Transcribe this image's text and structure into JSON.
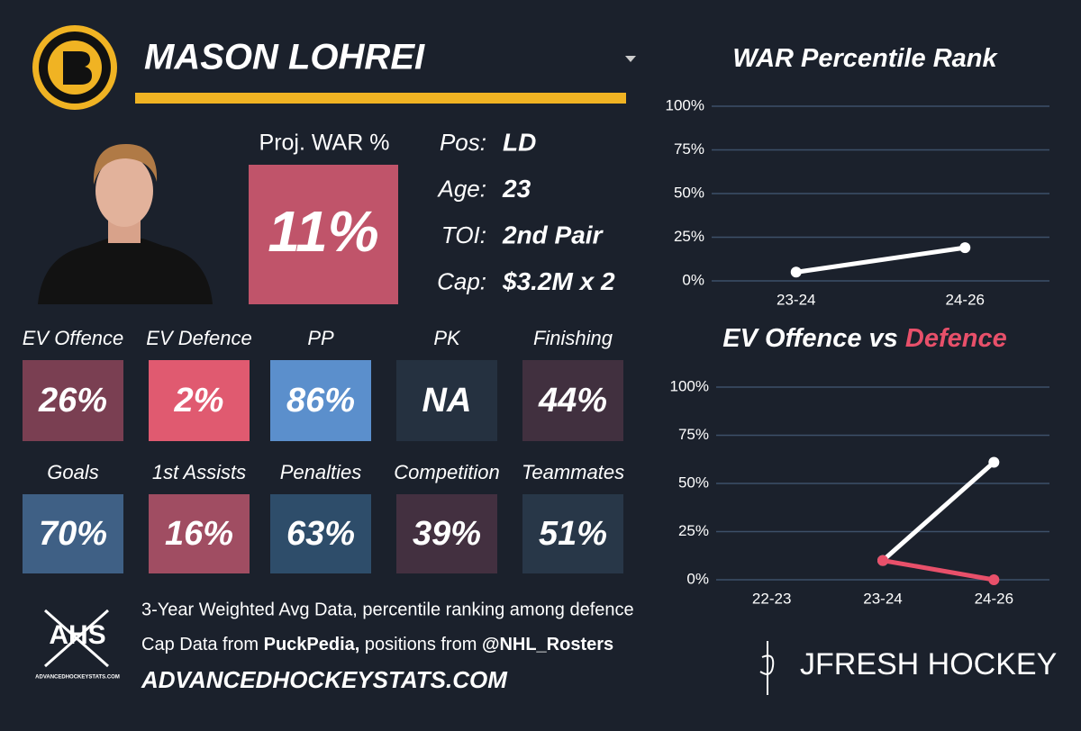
{
  "player": {
    "name": "MASON LOHREI",
    "proj_war_label": "Proj. WAR %",
    "proj_war": "11%",
    "proj_war_color": "#c0546a",
    "info": [
      {
        "label": "Pos:",
        "value": "LD"
      },
      {
        "label": "Age:",
        "value": "23"
      },
      {
        "label": "TOI:",
        "value": "2nd Pair"
      },
      {
        "label": "Cap:",
        "value": "$3.2M x 2"
      }
    ]
  },
  "tiles": [
    [
      {
        "label": "EV Offence",
        "value": "26%",
        "color": "#7a3f52"
      },
      {
        "label": "EV Defence",
        "value": "2%",
        "color": "#e05a70"
      },
      {
        "label": "PP",
        "value": "86%",
        "color": "#5b8fcc"
      },
      {
        "label": "PK",
        "value": "NA",
        "color": "#253140"
      },
      {
        "label": "Finishing",
        "value": "44%",
        "color": "#41303f"
      }
    ],
    [
      {
        "label": "Goals",
        "value": "70%",
        "color": "#3f6085"
      },
      {
        "label": "1st Assists",
        "value": "16%",
        "color": "#a04d62"
      },
      {
        "label": "Penalties",
        "value": "63%",
        "color": "#2e4d6a"
      },
      {
        "label": "Competition",
        "value": "39%",
        "color": "#433040"
      },
      {
        "label": "Teammates",
        "value": "51%",
        "color": "#283748"
      }
    ]
  ],
  "footer": {
    "logo": "AHS",
    "logo_sub": "ADVANCEDHOCKEYSTATS.COM",
    "line1": "3-Year Weighted Avg Data, percentile ranking among defence",
    "line2": [
      {
        "text": "Cap Data from ",
        "bold": false
      },
      {
        "text": "PuckPedia,",
        "bold": true
      },
      {
        "text": " positions from ",
        "bold": false
      },
      {
        "text": "@NHL_Rosters",
        "bold": true
      }
    ],
    "site": "ADVANCEDHOCKEYSTATS.COM",
    "brand": "JFRESH HOCKEY"
  },
  "chart_data": [
    {
      "type": "line",
      "title": "WAR Percentile Rank",
      "categories": [
        "23-24",
        "24-26"
      ],
      "series": [
        {
          "color": "#ffffff",
          "values": [
            5,
            19
          ]
        }
      ],
      "ylim": [
        0,
        100
      ],
      "yticks": [
        {
          "value": 0,
          "label": "0%"
        },
        {
          "value": 25,
          "label": "25%"
        },
        {
          "value": 50,
          "label": "50%"
        },
        {
          "value": 75,
          "label": "75%"
        },
        {
          "value": 100,
          "label": "100%"
        }
      ],
      "grid": true
    },
    {
      "type": "line",
      "title": "EV Offence vs",
      "title_highlight": "Defence",
      "title_highlight_color": "#e8506a",
      "categories": [
        "22-23",
        "23-24",
        "24-26"
      ],
      "series": [
        {
          "color": "#ffffff",
          "values": [
            null,
            10,
            61
          ]
        },
        {
          "color": "#e8506a",
          "values": [
            null,
            10,
            0
          ]
        }
      ],
      "ylim": [
        0,
        100
      ],
      "yticks": [
        {
          "value": 0,
          "label": "0%"
        },
        {
          "value": 25,
          "label": "25%"
        },
        {
          "value": 50,
          "label": "50%"
        },
        {
          "value": 75,
          "label": "75%"
        },
        {
          "value": 100,
          "label": "100%"
        }
      ],
      "grid": true
    }
  ]
}
